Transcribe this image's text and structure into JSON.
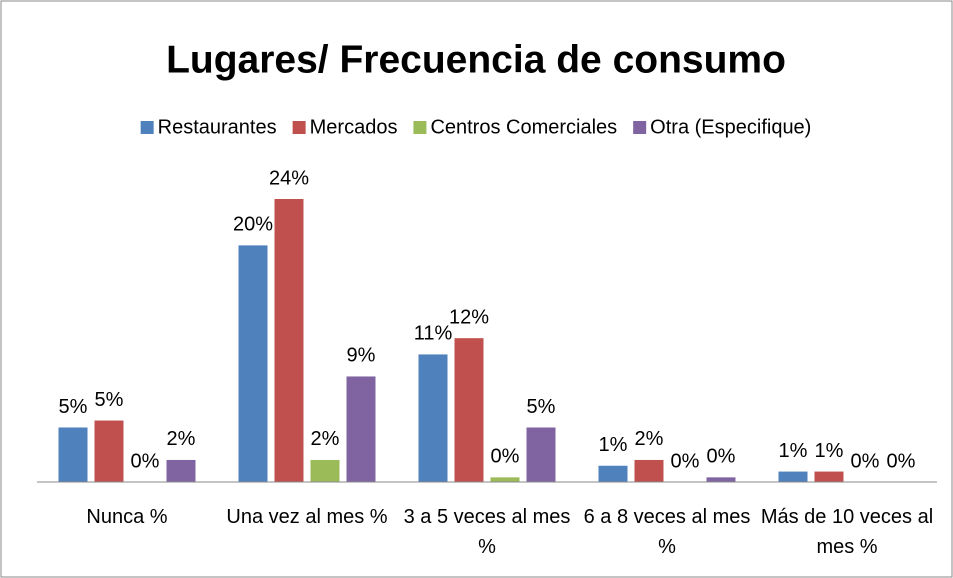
{
  "chart_data": {
    "type": "bar",
    "title": "Lugares/ Frecuencia de consumo",
    "categories": [
      "Nunca %",
      "Una vez al mes %",
      "3 a 5 veces al mes %",
      "6 a 8 veces al mes %",
      "Más de 10 veces al mes %"
    ],
    "series": [
      {
        "name": "Restaurantes",
        "color": "#4f81bd",
        "values": [
          4.7,
          20.4,
          11.0,
          1.4,
          0.9
        ],
        "value_labels": [
          "5%",
          "20%",
          "11%",
          "1%",
          "1%"
        ]
      },
      {
        "name": "Mercados",
        "color": "#c0504d",
        "values": [
          5.3,
          24.4,
          12.4,
          1.9,
          0.9
        ],
        "value_labels": [
          "5%",
          "24%",
          "12%",
          "2%",
          "1%"
        ]
      },
      {
        "name": "Centros Comerciales",
        "color": "#9bbb59",
        "values": [
          0,
          1.9,
          0.4,
          0,
          0
        ],
        "value_labels": [
          "0%",
          "2%",
          "0%",
          "0%",
          "0%"
        ]
      },
      {
        "name": "Otra (Especifique)",
        "color": "#8064a2",
        "values": [
          1.9,
          9.1,
          4.7,
          0.4,
          0
        ],
        "value_labels": [
          "2%",
          "9%",
          "5%",
          "0%",
          "0%"
        ]
      }
    ],
    "legend": "top"
  }
}
